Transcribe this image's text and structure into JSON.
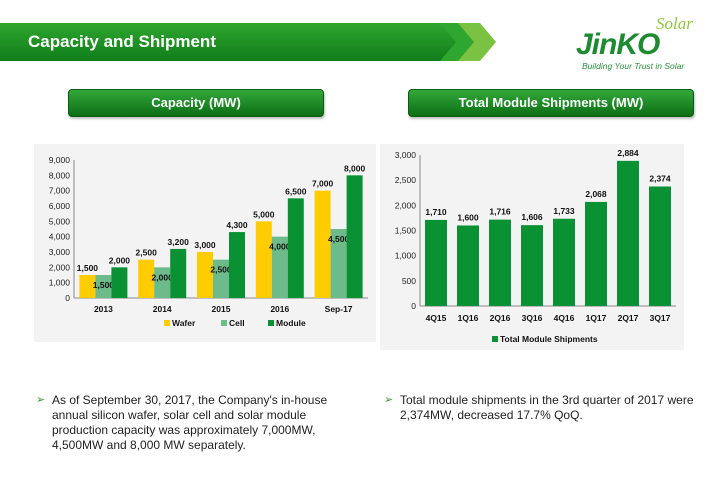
{
  "header": {
    "title": "Capacity and Shipment"
  },
  "logo": {
    "brand": "JinKO",
    "solar": "Solar",
    "tagline": "Building Your Trust in Solar"
  },
  "colors": {
    "wafer": "#ffcc00",
    "cell": "#6dbb8a",
    "module": "#0a9133",
    "shipments": "#0a9133",
    "accent": "#1f9a2a"
  },
  "left_section": {
    "heading": "Capacity (MW)",
    "bullet": "As of September 30, 2017, the Company's in-house annual silicon wafer, solar cell and solar module production capacity was approximately 7,000MW, 4,500MW and  8,000 MW separately."
  },
  "right_section": {
    "heading": "Total Module Shipments (MW)",
    "bullet": "Total module shipments in the 3rd quarter of 2017 were 2,374MW, decreased 17.7% QoQ."
  },
  "chart_data": [
    {
      "type": "bar",
      "categories": [
        "2013",
        "2014",
        "2015",
        "2016",
        "Sep-17"
      ],
      "series": [
        {
          "name": "Wafer",
          "values": [
            1500,
            2500,
            3000,
            5000,
            7000
          ],
          "labels": [
            "1,500",
            "2,500",
            "3,000",
            "5,000",
            "7,000"
          ]
        },
        {
          "name": "Cell",
          "values": [
            1500,
            2000,
            2500,
            4000,
            4500
          ],
          "labels": [
            "1,500",
            "2,000",
            "2,500",
            "4,000",
            "4,500"
          ]
        },
        {
          "name": "Module",
          "values": [
            2000,
            3200,
            4300,
            6500,
            8000
          ],
          "labels": [
            "2,000",
            "3,200",
            "4,300",
            "6,500",
            "8,000"
          ]
        }
      ],
      "yticks": [
        "0",
        "1,000",
        "2,000",
        "3,000",
        "4,000",
        "5,000",
        "6,000",
        "7,000",
        "8,000",
        "9,000"
      ],
      "ylim": [
        0,
        9000
      ],
      "legend": "bottom"
    },
    {
      "type": "bar",
      "categories": [
        "4Q15",
        "1Q16",
        "2Q16",
        "3Q16",
        "4Q16",
        "1Q17",
        "2Q17",
        "3Q17"
      ],
      "series": [
        {
          "name": "Total Module Shipments",
          "values": [
            1710,
            1600,
            1716,
            1606,
            1733,
            2068,
            2884,
            2374
          ],
          "labels": [
            "1,710",
            "1,600",
            "1,716",
            "1,606",
            "1,733",
            "2,068",
            "2,884",
            "2,374"
          ]
        }
      ],
      "yticks": [
        "0",
        "500",
        "1,000",
        "1,500",
        "2,000",
        "2,500",
        "3,000"
      ],
      "ylim": [
        0,
        3000
      ],
      "legend": "bottom"
    }
  ]
}
